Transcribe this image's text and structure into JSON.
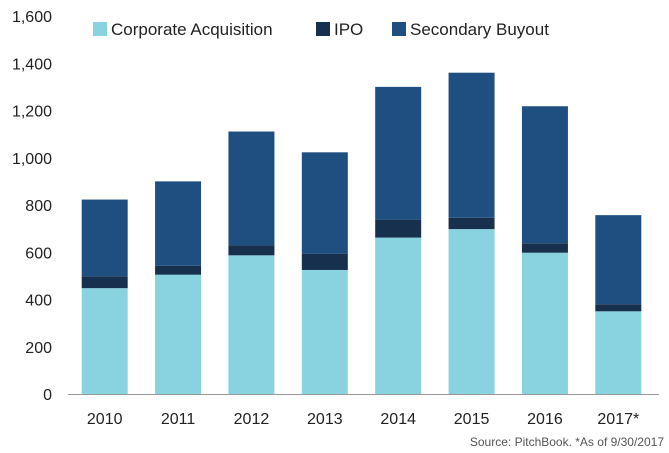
{
  "chart_data": {
    "type": "bar",
    "stacked": true,
    "categories": [
      "2010",
      "2011",
      "2012",
      "2013",
      "2014",
      "2015",
      "2016",
      "2017*"
    ],
    "series": [
      {
        "name": "Corporate Acquisition",
        "color": "#89d2df",
        "values": [
          448,
          505,
          587,
          525,
          662,
          698,
          598,
          350
        ]
      },
      {
        "name": "IPO",
        "color": "#17304d",
        "values": [
          50,
          38,
          42,
          68,
          76,
          48,
          40,
          30
        ]
      },
      {
        "name": "Secondary Buyout",
        "color": "#1e4f80",
        "values": [
          325,
          357,
          482,
          430,
          562,
          614,
          580,
          377
        ]
      }
    ],
    "ylim": [
      0,
      1600
    ],
    "yticks": [
      "0",
      "200",
      "400",
      "600",
      "800",
      "1,000",
      "1,200",
      "1,400",
      "1,600"
    ],
    "ytick_values": [
      0,
      200,
      400,
      600,
      800,
      1000,
      1200,
      1400,
      1600
    ],
    "grid": false,
    "legend_position": "top",
    "source_note": "Source: PitchBook. *As of 9/30/2017"
  }
}
